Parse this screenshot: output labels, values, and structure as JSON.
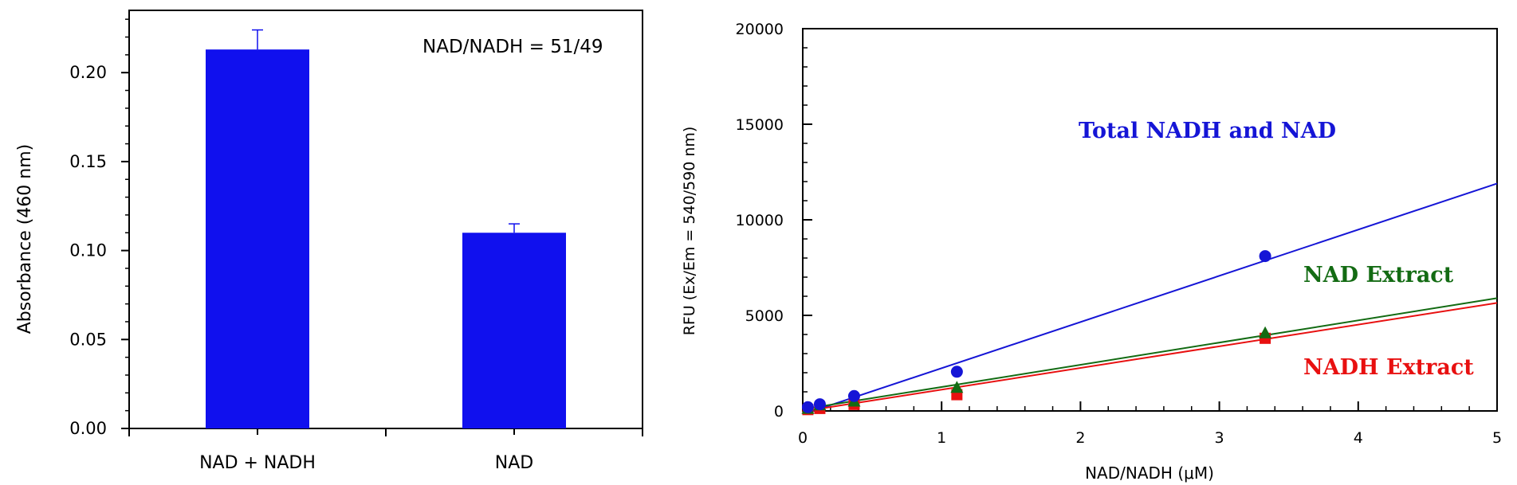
{
  "chart_data": [
    {
      "type": "bar",
      "title": "",
      "xlabel": "",
      "ylabel": "Absorbance (460 nm)",
      "ylim": [
        0,
        0.235
      ],
      "yticks": [
        "0.00",
        "0.05",
        "0.10",
        "0.15",
        "0.20"
      ],
      "categories": [
        "NAD + NADH",
        "NAD"
      ],
      "values": [
        0.213,
        0.11
      ],
      "errors": [
        0.011,
        0.005
      ],
      "annotation": "NAD/NADH = 51/49",
      "bar_color": "#1010ee",
      "grid": false
    },
    {
      "type": "scatter",
      "title": "",
      "xlabel": "NAD/NADH (μM)",
      "ylabel": "RFU (Ex/Em = 540/590 nm)",
      "xlim": [
        0,
        5
      ],
      "ylim": [
        0,
        20000
      ],
      "xticks": [
        "0",
        "1",
        "2",
        "3",
        "4",
        "5"
      ],
      "yticks": [
        "0",
        "5000",
        "10000",
        "15000",
        "20000"
      ],
      "grid": false,
      "series": [
        {
          "name": "Total NADH and NAD",
          "color": "#1515d6",
          "marker": "circle",
          "x": [
            0.037,
            0.123,
            0.37,
            1.11,
            3.33
          ],
          "y": [
            200,
            350,
            780,
            2050,
            8100
          ],
          "fit": [
            [
              0,
              -180
            ],
            [
              5,
              11900
            ]
          ]
        },
        {
          "name": "NAD Extract",
          "color": "#136b13",
          "marker": "triangle",
          "x": [
            0.037,
            0.123,
            0.37,
            1.11,
            3.33
          ],
          "y": [
            100,
            280,
            480,
            1200,
            4050
          ],
          "fit": [
            [
              0,
              90
            ],
            [
              5,
              5900
            ]
          ]
        },
        {
          "name": "NADH Extract",
          "color": "#e81010",
          "marker": "square",
          "x": [
            0.037,
            0.123,
            0.37,
            1.11,
            3.33
          ],
          "y": [
            70,
            130,
            340,
            850,
            3800
          ],
          "fit": [
            [
              0,
              -20
            ],
            [
              5,
              5650
            ]
          ]
        }
      ]
    }
  ]
}
